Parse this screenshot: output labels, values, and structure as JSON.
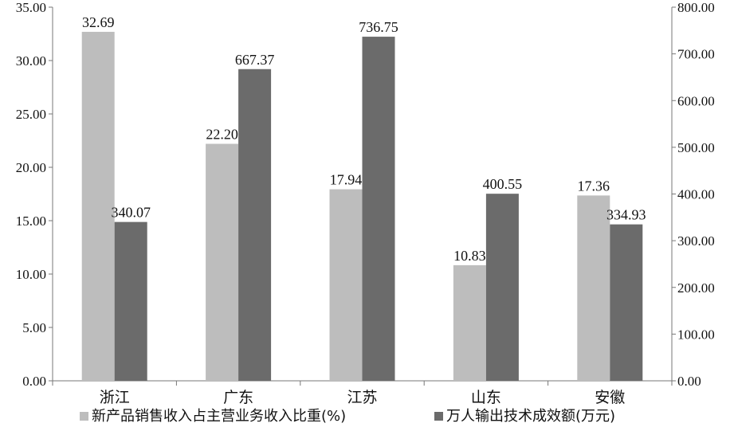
{
  "chart_data": {
    "type": "bar",
    "categories": [
      "浙江",
      "广东",
      "江苏",
      "山东",
      "安徽"
    ],
    "series": [
      {
        "name": "新产品销售收入占主营业务收入比重(%)",
        "axis": "left",
        "values": [
          32.69,
          22.2,
          17.94,
          10.83,
          17.36
        ],
        "labels": [
          "32.69",
          "22.20",
          "17.94",
          "10.83",
          "17.36"
        ],
        "color": "#bdbdbd"
      },
      {
        "name": "万人输出技术成效额(万元)",
        "axis": "right",
        "values": [
          340.07,
          667.37,
          736.75,
          400.55,
          334.93
        ],
        "labels": [
          "340.07",
          "667.37",
          "736.75",
          "400.55",
          "334.93"
        ],
        "color": "#6b6b6b"
      }
    ],
    "y_left": {
      "range": [
        0,
        35
      ],
      "ticks": [
        "0.00",
        "5.00",
        "10.00",
        "15.00",
        "20.00",
        "25.00",
        "30.00",
        "35.00"
      ]
    },
    "y_right": {
      "range": [
        0,
        800
      ],
      "ticks": [
        "0.00",
        "100.00",
        "200.00",
        "300.00",
        "400.00",
        "500.00",
        "600.00",
        "700.00",
        "800.00"
      ]
    },
    "grid": false,
    "legend": "bottom"
  }
}
